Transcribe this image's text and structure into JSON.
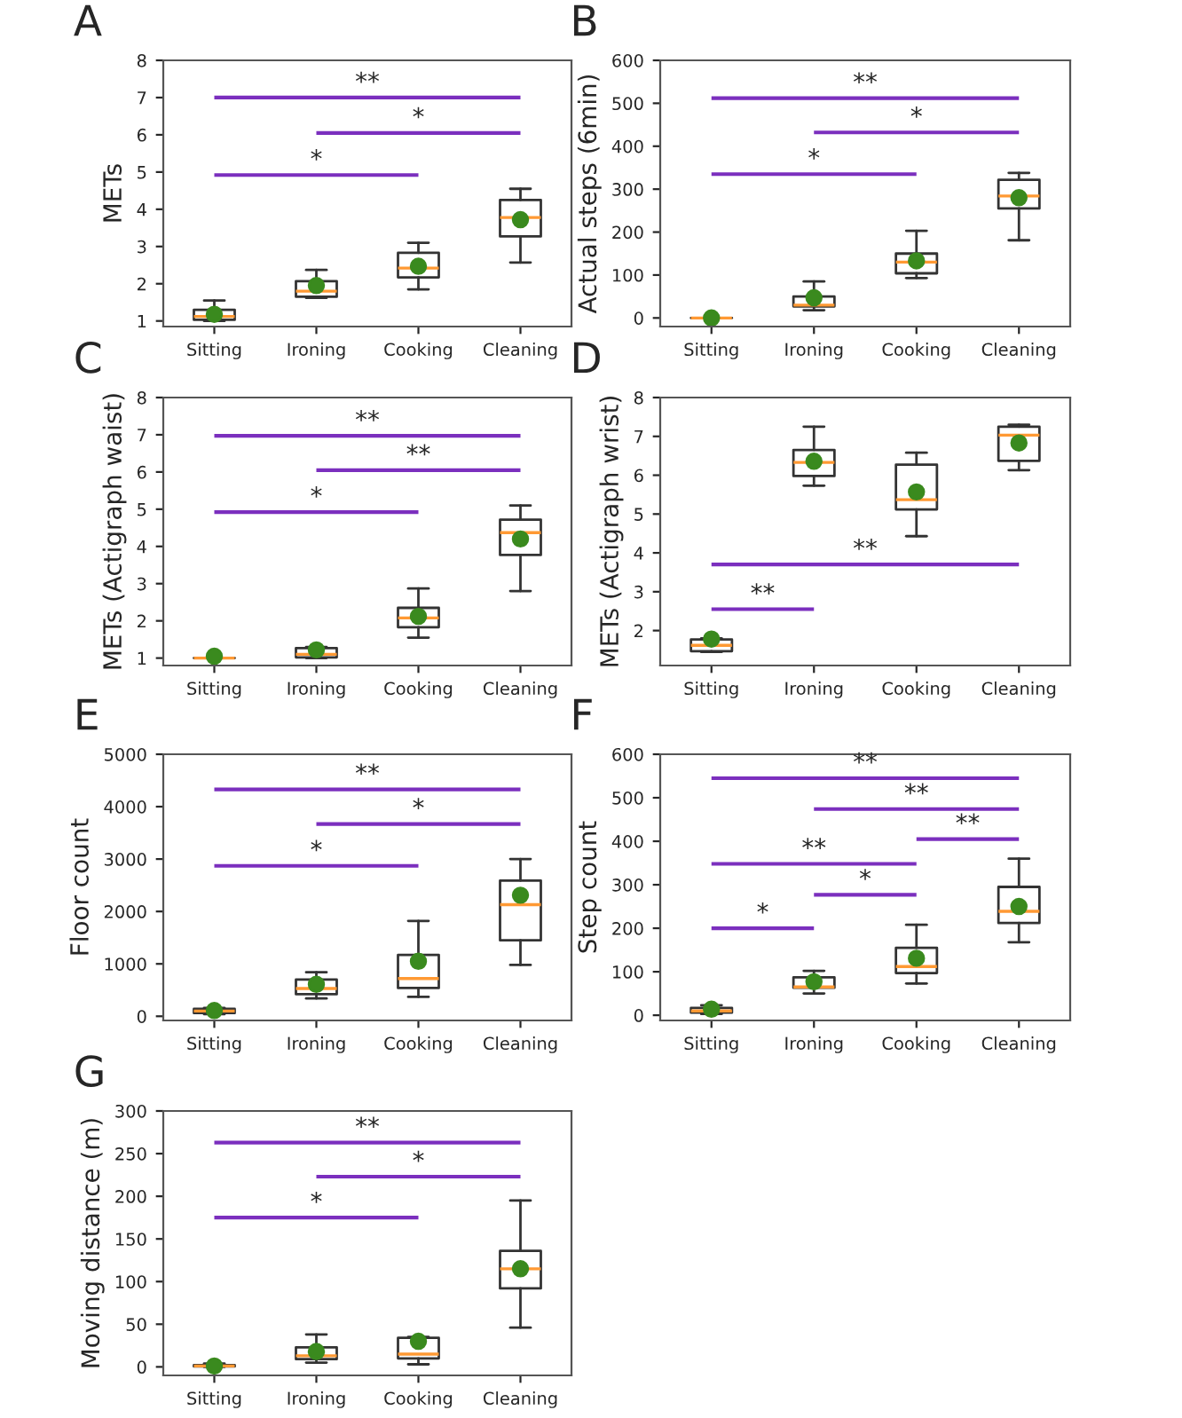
{
  "chart_data": [
    {
      "type": "box",
      "title": "A",
      "ylabel": "METs",
      "categories": [
        "Sitting",
        "Ironing",
        "Cooking",
        "Cleaning"
      ],
      "ylim": [
        0.85,
        8
      ],
      "yticks": [
        1,
        2,
        3,
        4,
        5,
        6,
        7,
        8
      ],
      "boxes": [
        {
          "low": 1.0,
          "q1": 1.03,
          "median": 1.12,
          "q3": 1.3,
          "high": 1.55,
          "mean": 1.18
        },
        {
          "low": 1.62,
          "q1": 1.65,
          "median": 1.8,
          "q3": 2.07,
          "high": 2.37,
          "mean": 1.95
        },
        {
          "low": 1.85,
          "q1": 2.17,
          "median": 2.42,
          "q3": 2.83,
          "high": 3.1,
          "mean": 2.47
        },
        {
          "low": 2.57,
          "q1": 3.27,
          "median": 3.78,
          "q3": 4.25,
          "high": 4.55,
          "mean": 3.72
        }
      ],
      "series": [
        {
          "type": "line",
          "color": "#7b2fbe",
          "x": [
            "Sitting",
            "Cleaning"
          ],
          "values": [
            7.0,
            7.0
          ]
        },
        {
          "type": "line",
          "color": "#7b2fbe",
          "x": [
            "Ironing",
            "Cleaning"
          ],
          "values": [
            6.05,
            6.05
          ]
        },
        {
          "type": "line",
          "color": "#7b2fbe",
          "x": [
            "Sitting",
            "Cooking"
          ],
          "values": [
            4.92,
            4.92
          ]
        }
      ],
      "annotations": [
        {
          "text": "**",
          "y": 7.0
        },
        {
          "text": "*",
          "y": 6.05
        },
        {
          "text": "*",
          "y": 4.92
        }
      ]
    },
    {
      "type": "box",
      "title": "B",
      "ylabel": "Actual steps (6min)",
      "categories": [
        "Sitting",
        "Ironing",
        "Cooking",
        "Cleaning"
      ],
      "ylim": [
        -20,
        600
      ],
      "yticks": [
        0,
        100,
        200,
        300,
        400,
        500,
        600
      ],
      "boxes": [
        {
          "low": 0,
          "q1": 0,
          "median": 0,
          "q3": 0,
          "high": 0,
          "mean": 0
        },
        {
          "low": 18,
          "q1": 27,
          "median": 30,
          "q3": 50,
          "high": 85,
          "mean": 47
        },
        {
          "low": 93,
          "q1": 104,
          "median": 130,
          "q3": 150,
          "high": 203,
          "mean": 133
        },
        {
          "low": 181,
          "q1": 255,
          "median": 284,
          "q3": 322,
          "high": 338,
          "mean": 280
        }
      ],
      "series": [
        {
          "type": "line",
          "color": "#7b2fbe",
          "x": [
            "Sitting",
            "Cleaning"
          ],
          "values": [
            512,
            512
          ]
        },
        {
          "type": "line",
          "color": "#7b2fbe",
          "x": [
            "Ironing",
            "Cleaning"
          ],
          "values": [
            432,
            432
          ]
        },
        {
          "type": "line",
          "color": "#7b2fbe",
          "x": [
            "Sitting",
            "Cooking"
          ],
          "values": [
            335,
            335
          ]
        }
      ],
      "annotations": [
        {
          "text": "**",
          "y": 512
        },
        {
          "text": "*",
          "y": 432
        },
        {
          "text": "*",
          "y": 335
        }
      ]
    },
    {
      "type": "box",
      "title": "C",
      "ylabel": "METs (Actigraph waist)",
      "categories": [
        "Sitting",
        "Ironing",
        "Cooking",
        "Cleaning"
      ],
      "ylim": [
        0.8,
        8
      ],
      "yticks": [
        1,
        2,
        3,
        4,
        5,
        6,
        7,
        8
      ],
      "boxes": [
        {
          "low": 1.0,
          "q1": 1.0,
          "median": 1.0,
          "q3": 1.0,
          "high": 1.0,
          "mean": 1.05
        },
        {
          "low": 1.0,
          "q1": 1.02,
          "median": 1.1,
          "q3": 1.27,
          "high": 1.3,
          "mean": 1.22
        },
        {
          "low": 1.55,
          "q1": 1.83,
          "median": 2.08,
          "q3": 2.35,
          "high": 2.87,
          "mean": 2.12
        },
        {
          "low": 2.8,
          "q1": 3.77,
          "median": 4.37,
          "q3": 4.72,
          "high": 5.1,
          "mean": 4.2
        }
      ],
      "series": [
        {
          "type": "line",
          "color": "#7b2fbe",
          "x": [
            "Sitting",
            "Cleaning"
          ],
          "values": [
            6.97,
            6.97
          ]
        },
        {
          "type": "line",
          "color": "#7b2fbe",
          "x": [
            "Ironing",
            "Cleaning"
          ],
          "values": [
            6.05,
            6.05
          ]
        },
        {
          "type": "line",
          "color": "#7b2fbe",
          "x": [
            "Sitting",
            "Cooking"
          ],
          "values": [
            4.92,
            4.92
          ]
        }
      ],
      "annotations": [
        {
          "text": "**",
          "y": 6.97
        },
        {
          "text": "**",
          "y": 6.05
        },
        {
          "text": "*",
          "y": 4.92
        }
      ]
    },
    {
      "type": "box",
      "title": "D",
      "ylabel": "METs (Actigraph wrist)",
      "categories": [
        "Sitting",
        "Ironing",
        "Cooking",
        "Cleaning"
      ],
      "ylim": [
        1.1,
        8
      ],
      "yticks": [
        2,
        3,
        4,
        5,
        6,
        7,
        8
      ],
      "boxes": [
        {
          "low": 1.45,
          "q1": 1.47,
          "median": 1.62,
          "q3": 1.77,
          "high": 1.8,
          "mean": 1.78
        },
        {
          "low": 5.73,
          "q1": 5.98,
          "median": 6.33,
          "q3": 6.65,
          "high": 7.25,
          "mean": 6.36
        },
        {
          "low": 4.43,
          "q1": 5.12,
          "median": 5.37,
          "q3": 6.27,
          "high": 6.58,
          "mean": 5.57
        },
        {
          "low": 6.13,
          "q1": 6.37,
          "median": 7.03,
          "q3": 7.25,
          "high": 7.3,
          "mean": 6.83
        }
      ],
      "series": [
        {
          "type": "line",
          "color": "#7b2fbe",
          "x": [
            "Sitting",
            "Cleaning"
          ],
          "values": [
            3.7,
            3.7
          ]
        },
        {
          "type": "line",
          "color": "#7b2fbe",
          "x": [
            "Sitting",
            "Ironing"
          ],
          "values": [
            2.55,
            2.55
          ]
        }
      ],
      "annotations": [
        {
          "text": "**",
          "y": 3.7
        },
        {
          "text": "**",
          "y": 2.55
        }
      ]
    },
    {
      "type": "box",
      "title": "E",
      "ylabel": "Floor count",
      "categories": [
        "Sitting",
        "Ironing",
        "Cooking",
        "Cleaning"
      ],
      "ylim": [
        -80,
        5000
      ],
      "yticks": [
        0,
        1000,
        2000,
        3000,
        4000,
        5000
      ],
      "boxes": [
        {
          "low": 40,
          "q1": 60,
          "median": 100,
          "q3": 140,
          "high": 160,
          "mean": 110
        },
        {
          "low": 340,
          "q1": 420,
          "median": 530,
          "q3": 700,
          "high": 840,
          "mean": 610
        },
        {
          "low": 370,
          "q1": 540,
          "median": 720,
          "q3": 1170,
          "high": 1820,
          "mean": 1050
        },
        {
          "low": 980,
          "q1": 1450,
          "median": 2130,
          "q3": 2590,
          "high": 3000,
          "mean": 2310
        }
      ],
      "series": [
        {
          "type": "line",
          "color": "#7b2fbe",
          "x": [
            "Sitting",
            "Cleaning"
          ],
          "values": [
            4330,
            4330
          ]
        },
        {
          "type": "line",
          "color": "#7b2fbe",
          "x": [
            "Ironing",
            "Cleaning"
          ],
          "values": [
            3670,
            3670
          ]
        },
        {
          "type": "line",
          "color": "#7b2fbe",
          "x": [
            "Sitting",
            "Cooking"
          ],
          "values": [
            2870,
            2870
          ]
        }
      ],
      "annotations": [
        {
          "text": "**",
          "y": 4330
        },
        {
          "text": "*",
          "y": 3670
        },
        {
          "text": "*",
          "y": 2870
        }
      ]
    },
    {
      "type": "box",
      "title": "F",
      "ylabel": "Step count",
      "categories": [
        "Sitting",
        "Ironing",
        "Cooking",
        "Cleaning"
      ],
      "ylim": [
        -12,
        600
      ],
      "yticks": [
        0,
        100,
        200,
        300,
        400,
        500,
        600
      ],
      "boxes": [
        {
          "low": 3,
          "q1": 6,
          "median": 10,
          "q3": 17,
          "high": 23,
          "mean": 14
        },
        {
          "low": 50,
          "q1": 63,
          "median": 65,
          "q3": 87,
          "high": 102,
          "mean": 77
        },
        {
          "low": 73,
          "q1": 97,
          "median": 112,
          "q3": 155,
          "high": 208,
          "mean": 131
        },
        {
          "low": 168,
          "q1": 212,
          "median": 239,
          "q3": 295,
          "high": 360,
          "mean": 250
        }
      ],
      "series": [
        {
          "type": "line",
          "color": "#7b2fbe",
          "x": [
            "Sitting",
            "Cleaning"
          ],
          "values": [
            545,
            545
          ]
        },
        {
          "type": "line",
          "color": "#7b2fbe",
          "x": [
            "Ironing",
            "Cleaning"
          ],
          "values": [
            474,
            474
          ]
        },
        {
          "type": "line",
          "color": "#7b2fbe",
          "x": [
            "Cooking",
            "Cleaning"
          ],
          "values": [
            405,
            405
          ]
        },
        {
          "type": "line",
          "color": "#7b2fbe",
          "x": [
            "Sitting",
            "Cooking"
          ],
          "values": [
            348,
            348
          ]
        },
        {
          "type": "line",
          "color": "#7b2fbe",
          "x": [
            "Ironing",
            "Cooking"
          ],
          "values": [
            277,
            277
          ]
        },
        {
          "type": "line",
          "color": "#7b2fbe",
          "x": [
            "Sitting",
            "Ironing"
          ],
          "values": [
            200,
            200
          ]
        }
      ],
      "annotations": [
        {
          "text": "**",
          "y": 545
        },
        {
          "text": "**",
          "y": 474
        },
        {
          "text": "**",
          "y": 405
        },
        {
          "text": "**",
          "y": 348
        },
        {
          "text": "*",
          "y": 277
        },
        {
          "text": "*",
          "y": 200
        }
      ]
    },
    {
      "type": "box",
      "title": "G",
      "ylabel": "Moving distance (m)",
      "categories": [
        "Sitting",
        "Ironing",
        "Cooking",
        "Cleaning"
      ],
      "ylim": [
        -10,
        300
      ],
      "yticks": [
        0,
        50,
        100,
        150,
        200,
        250,
        300
      ],
      "boxes": [
        {
          "low": 0,
          "q1": 0.5,
          "median": 1,
          "q3": 2,
          "high": 4,
          "mean": 1
        },
        {
          "low": 5,
          "q1": 9,
          "median": 13,
          "q3": 23,
          "high": 38,
          "mean": 18
        },
        {
          "low": 3,
          "q1": 10,
          "median": 15,
          "q3": 34,
          "high": 35,
          "mean": 30
        },
        {
          "low": 46,
          "q1": 92,
          "median": 115,
          "q3": 136,
          "high": 195,
          "mean": 115
        }
      ],
      "series": [
        {
          "type": "line",
          "color": "#7b2fbe",
          "x": [
            "Sitting",
            "Cleaning"
          ],
          "values": [
            263,
            263
          ]
        },
        {
          "type": "line",
          "color": "#7b2fbe",
          "x": [
            "Ironing",
            "Cleaning"
          ],
          "values": [
            223,
            223
          ]
        },
        {
          "type": "line",
          "color": "#7b2fbe",
          "x": [
            "Sitting",
            "Cooking"
          ],
          "values": [
            175,
            175
          ]
        }
      ],
      "annotations": [
        {
          "text": "**",
          "y": 263
        },
        {
          "text": "*",
          "y": 223
        },
        {
          "text": "*",
          "y": 175
        }
      ]
    }
  ]
}
